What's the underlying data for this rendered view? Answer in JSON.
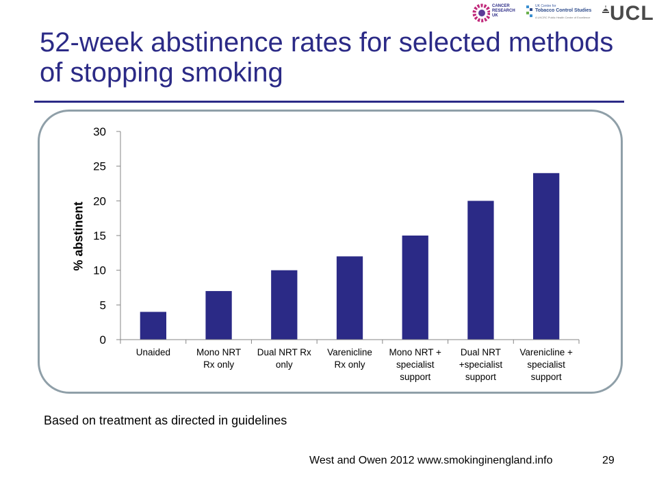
{
  "logos": {
    "cruk_text": [
      "CANCER",
      "RESEARCH",
      "UK"
    ],
    "uktcs_line1": "UK Centre for",
    "uktcs_line2": "Tobacco Control Studies",
    "uktcs_line3": "A UKCRC Public Health Centre of Excellence",
    "ucl_text": "UCL"
  },
  "slide": {
    "title": "52-week abstinence rates for selected methods of stopping smoking",
    "footnote": "Based on treatment as directed in guidelines",
    "credit": "West and Owen 2012 www.smokinginengland.info",
    "page_number": "29"
  },
  "chart_data": {
    "type": "bar",
    "categories": [
      [
        "Unaided"
      ],
      [
        "Mono NRT",
        "Rx only"
      ],
      [
        "Dual NRT  Rx",
        "only"
      ],
      [
        "Varenicline",
        "Rx only"
      ],
      [
        "Mono NRT +",
        "specialist",
        "support"
      ],
      [
        "Dual NRT",
        "+specialist",
        "support"
      ],
      [
        "Varenicline +",
        "specialist",
        "support"
      ]
    ],
    "values": [
      4,
      7,
      10,
      12,
      15,
      20,
      24
    ],
    "title": "",
    "xlabel": "",
    "ylabel": "% abstinent",
    "ylim": [
      0,
      30
    ],
    "yticks": [
      0,
      5,
      10,
      15,
      20,
      25,
      30
    ],
    "grid": false,
    "legend": "none",
    "bar_color": "#2b2a86"
  },
  "colors": {
    "accent": "#2b2a86",
    "frame": "#8f9fa8"
  }
}
